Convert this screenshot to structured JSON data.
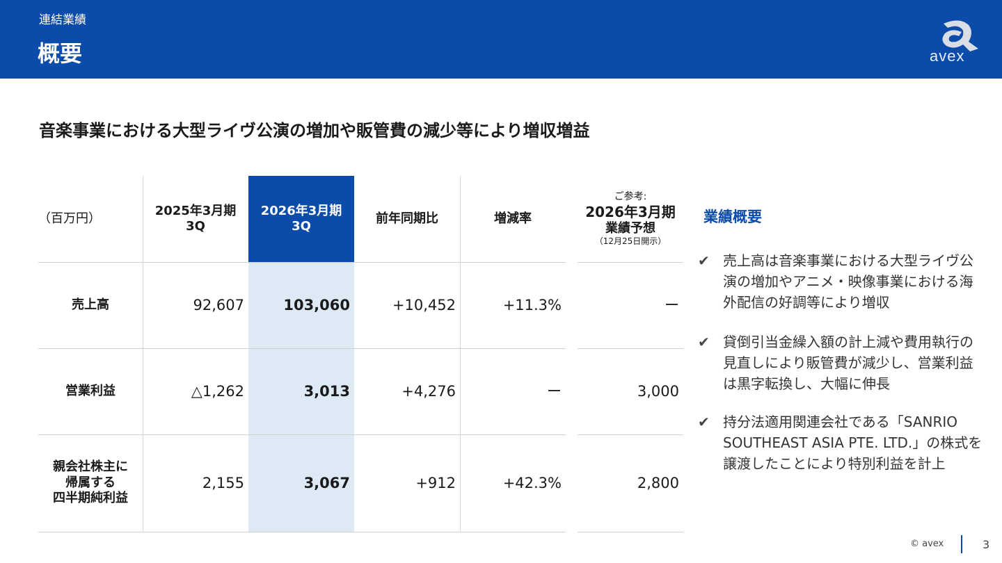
{
  "header": {
    "section": "連結業績",
    "title": "概要",
    "logo_text": "avex"
  },
  "headline": "音楽事業における大型ライヴ公演の増加や販管費の減少等により増収増益",
  "table": {
    "unit": "（百万円）",
    "columns": [
      {
        "line1": "2025年3月期",
        "line2": "3Q"
      },
      {
        "line1": "2026年3月期",
        "line2": "3Q"
      },
      {
        "line1": "前年同期比"
      },
      {
        "line1": "増減率"
      },
      {
        "pre": "ご参考:",
        "line1": "2026年3月期",
        "line2": "業績予想",
        "note": "（12月25日開示）"
      }
    ],
    "rows": [
      {
        "label": "売上高",
        "values": [
          "92,607",
          "103,060",
          "+10,452",
          "+11.3%",
          "ー"
        ]
      },
      {
        "label": "営業利益",
        "values": [
          "△1,262",
          "3,013",
          "+4,276",
          "ー",
          "3,000"
        ]
      },
      {
        "label": "親会社株主に\n帰属する\n四半期純利益",
        "values": [
          "2,155",
          "3,067",
          "+912",
          "+42.3%",
          "2,800"
        ]
      }
    ]
  },
  "summary": {
    "title": "業績概要",
    "items": [
      "売上高は音楽事業における大型ライヴ公演の増加やアニメ・映像事業における海外配信の好調等により増収",
      "貸倒引当金繰入額の計上減や費用執行の見直しにより販管費が減少し、営業利益は黒字転換し、大幅に伸長",
      "持分法適用関連会社である「SANRIO SOUTHEAST ASIA PTE. LTD.」の株式を譲渡したことにより特別利益を計上"
    ]
  },
  "footer": {
    "copyright": "© avex",
    "page": "3"
  },
  "colors": {
    "brand": "#0b4ba9",
    "highlight": "#dde9f5"
  }
}
